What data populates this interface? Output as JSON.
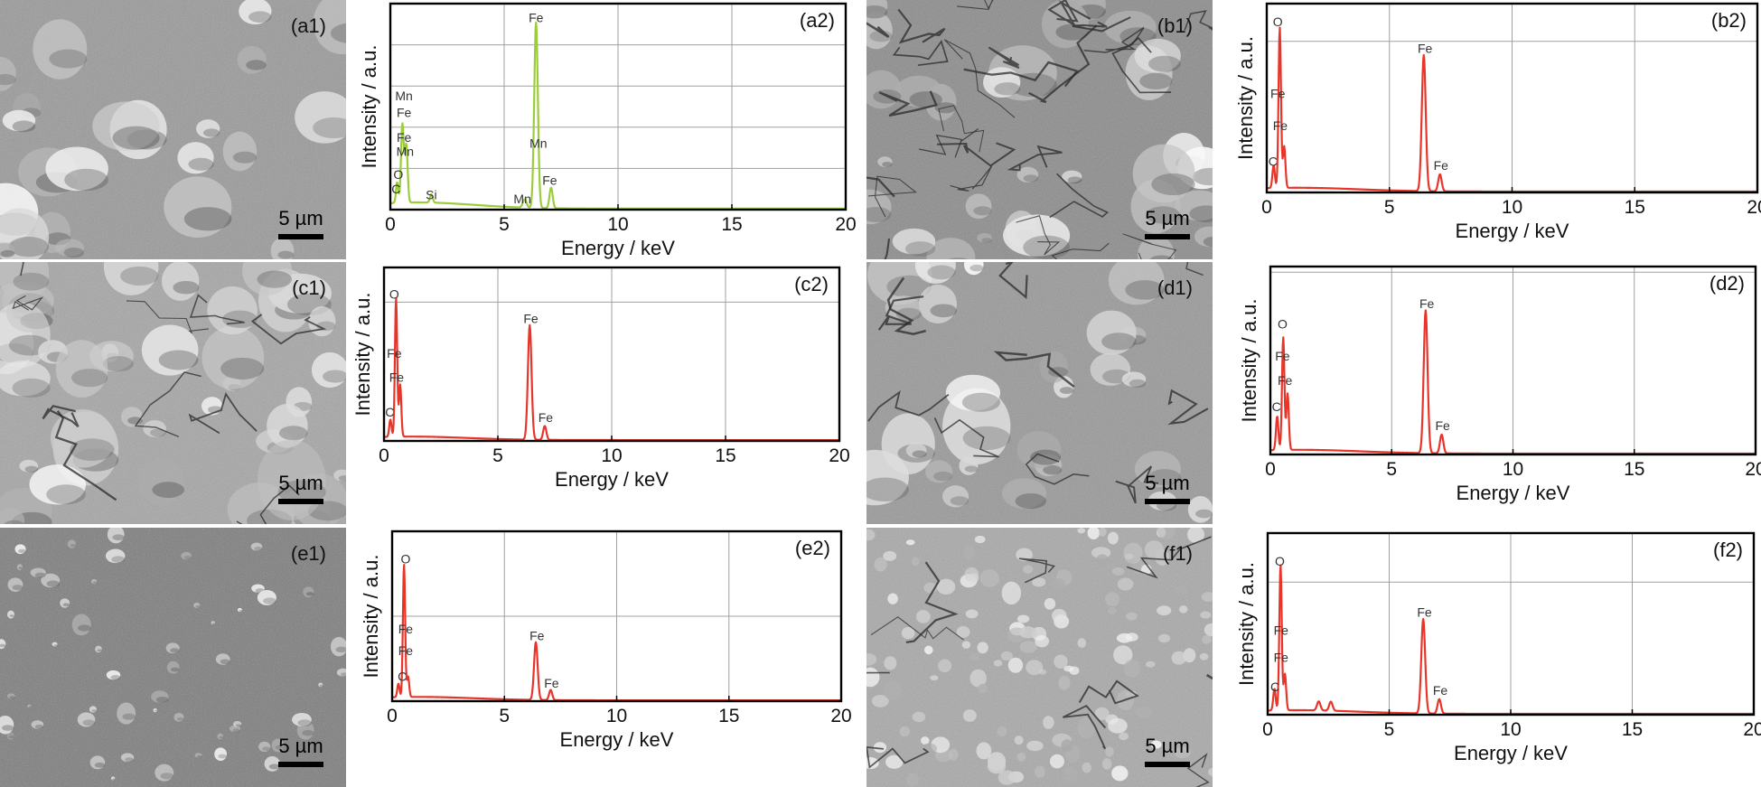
{
  "sem_panels": [
    {
      "id": "a1",
      "label": "(a1)",
      "scale_bar": "5 µm",
      "texture": "smooth"
    },
    {
      "id": "b1",
      "label": "(b1)",
      "scale_bar": "5 µm",
      "texture": "cracked"
    },
    {
      "id": "c1",
      "label": "(c1)",
      "scale_bar": "5 µm",
      "texture": "blocky"
    },
    {
      "id": "d1",
      "label": "(d1)",
      "scale_bar": "5 µm",
      "texture": "plates"
    },
    {
      "id": "e1",
      "label": "(e1)",
      "scale_bar": "5 µm",
      "texture": "speckled"
    },
    {
      "id": "f1",
      "label": "(f1)",
      "scale_bar": "5 µm",
      "texture": "granular"
    }
  ],
  "colors": {
    "spectrum_green": "#9ccc3c",
    "spectrum_red": "#e8352a",
    "grid": "#a0a0a0",
    "axis": "#000000"
  },
  "chart_data": [
    {
      "id": "a2",
      "type": "line",
      "panel_label": "(a2)",
      "xlabel": "Energy / keV",
      "ylabel": "Intensity / a.u.",
      "xlim": [
        0,
        20
      ],
      "xticks": [
        0,
        5,
        10,
        15,
        20
      ],
      "x_gridlines": [
        0,
        5,
        10,
        15,
        20
      ],
      "y_gridlines": [
        0.2,
        0.4,
        0.6,
        0.8,
        1.0
      ],
      "color": "#9ccc3c",
      "baseline": 0.03,
      "spectrum_end": 20,
      "peaks": [
        {
          "x": 0.3,
          "h": 0.1,
          "w": 0.05
        },
        {
          "x": 0.53,
          "h": 0.38,
          "w": 0.06
        },
        {
          "x": 0.7,
          "h": 0.28,
          "w": 0.06
        },
        {
          "x": 1.8,
          "h": 0.04,
          "w": 0.06
        },
        {
          "x": 5.9,
          "h": 0.04,
          "w": 0.08
        },
        {
          "x": 6.4,
          "h": 0.9,
          "w": 0.08
        },
        {
          "x": 7.06,
          "h": 0.1,
          "w": 0.07
        }
      ],
      "annotations": [
        {
          "text": "Mn",
          "x": 0.6,
          "y": 0.53
        },
        {
          "text": "Fe",
          "x": 0.6,
          "y": 0.45
        },
        {
          "text": "Fe",
          "x": 0.6,
          "y": 0.33
        },
        {
          "text": "Mn",
          "x": 0.65,
          "y": 0.26
        },
        {
          "text": "O",
          "x": 0.35,
          "y": 0.15
        },
        {
          "text": "C",
          "x": 0.25,
          "y": 0.08
        },
        {
          "text": "Si",
          "x": 1.8,
          "y": 0.05
        },
        {
          "text": "Mn",
          "x": 5.8,
          "y": 0.03
        },
        {
          "text": "Fe",
          "x": 6.4,
          "y": 0.91
        },
        {
          "text": "Mn",
          "x": 6.5,
          "y": 0.3
        },
        {
          "text": "Fe",
          "x": 7.0,
          "y": 0.12
        }
      ]
    },
    {
      "id": "b2",
      "type": "line",
      "panel_label": "(b2)",
      "xlabel": "Energy / keV",
      "ylabel": "Intensity / a.u.",
      "xlim": [
        0,
        20
      ],
      "xticks": [
        0,
        5,
        10,
        15,
        20
      ],
      "x_gridlines": [
        0,
        5,
        10,
        15,
        20
      ],
      "y_gridlines": [
        0.8,
        1.0
      ],
      "color": "#e8352a",
      "baseline": 0.02,
      "spectrum_end": 20,
      "peaks": [
        {
          "x": 0.28,
          "h": 0.12,
          "w": 0.05
        },
        {
          "x": 0.53,
          "h": 0.85,
          "w": 0.05
        },
        {
          "x": 0.71,
          "h": 0.22,
          "w": 0.05
        },
        {
          "x": 6.4,
          "h": 0.72,
          "w": 0.08
        },
        {
          "x": 7.06,
          "h": 0.09,
          "w": 0.07
        }
      ],
      "annotations": [
        {
          "text": "O",
          "x": 0.45,
          "y": 0.88
        },
        {
          "text": "Fe",
          "x": 0.45,
          "y": 0.5
        },
        {
          "text": "Fe",
          "x": 0.55,
          "y": 0.33
        },
        {
          "text": "C",
          "x": 0.25,
          "y": 0.14
        },
        {
          "text": "Fe",
          "x": 6.45,
          "y": 0.74
        },
        {
          "text": "Fe",
          "x": 7.1,
          "y": 0.12
        }
      ]
    },
    {
      "id": "c2",
      "type": "line",
      "panel_label": "(c2)",
      "xlabel": "Energy / keV",
      "ylabel": "Intensity / a.u.",
      "xlim": [
        0,
        20
      ],
      "xticks": [
        0,
        5,
        10,
        15,
        20
      ],
      "x_gridlines": [
        0,
        5,
        10,
        15,
        20
      ],
      "y_gridlines": [
        0.8,
        1.0
      ],
      "color": "#e8352a",
      "baseline": 0.02,
      "spectrum_end": 20,
      "peaks": [
        {
          "x": 0.28,
          "h": 0.1,
          "w": 0.05
        },
        {
          "x": 0.53,
          "h": 0.8,
          "w": 0.05
        },
        {
          "x": 0.71,
          "h": 0.3,
          "w": 0.05
        },
        {
          "x": 6.4,
          "h": 0.66,
          "w": 0.08
        },
        {
          "x": 7.06,
          "h": 0.08,
          "w": 0.07
        }
      ],
      "annotations": [
        {
          "text": "O",
          "x": 0.45,
          "y": 0.82
        },
        {
          "text": "Fe",
          "x": 0.45,
          "y": 0.48
        },
        {
          "text": "Fe",
          "x": 0.55,
          "y": 0.34
        },
        {
          "text": "C",
          "x": 0.25,
          "y": 0.14
        },
        {
          "text": "Fe",
          "x": 6.45,
          "y": 0.68
        },
        {
          "text": "Fe",
          "x": 7.1,
          "y": 0.11
        }
      ]
    },
    {
      "id": "d2",
      "type": "line",
      "panel_label": "(d2)",
      "xlabel": "Energy / keV",
      "ylabel": "Intensity / a.u.",
      "xlim": [
        0,
        20
      ],
      "xticks": [
        0,
        5,
        10,
        15,
        20
      ],
      "x_gridlines": [
        0,
        5,
        10,
        15,
        20
      ],
      "y_gridlines": [
        0.97
      ],
      "color": "#e8352a",
      "baseline": 0.02,
      "spectrum_end": 20,
      "peaks": [
        {
          "x": 0.28,
          "h": 0.18,
          "w": 0.05
        },
        {
          "x": 0.53,
          "h": 0.6,
          "w": 0.05
        },
        {
          "x": 0.71,
          "h": 0.3,
          "w": 0.05
        },
        {
          "x": 6.4,
          "h": 0.76,
          "w": 0.08
        },
        {
          "x": 7.06,
          "h": 0.1,
          "w": 0.07
        }
      ],
      "annotations": [
        {
          "text": "O",
          "x": 0.5,
          "y": 0.67
        },
        {
          "text": "Fe",
          "x": 0.5,
          "y": 0.5
        },
        {
          "text": "Fe",
          "x": 0.6,
          "y": 0.37
        },
        {
          "text": "C",
          "x": 0.25,
          "y": 0.23
        },
        {
          "text": "Fe",
          "x": 6.45,
          "y": 0.78
        },
        {
          "text": "Fe",
          "x": 7.1,
          "y": 0.13
        }
      ]
    },
    {
      "id": "e2",
      "type": "line",
      "panel_label": "(e2)",
      "xlabel": "Energy / keV",
      "ylabel": "Intensity / a.u.",
      "xlim": [
        0,
        20
      ],
      "xticks": [
        0,
        5,
        10,
        15,
        20
      ],
      "x_gridlines": [
        0,
        5,
        10,
        15,
        20
      ],
      "y_gridlines": [
        0.5
      ],
      "color": "#e8352a",
      "baseline": 0.02,
      "spectrum_end": 20,
      "peaks": [
        {
          "x": 0.28,
          "h": 0.08,
          "w": 0.05
        },
        {
          "x": 0.53,
          "h": 0.78,
          "w": 0.05
        },
        {
          "x": 0.71,
          "h": 0.12,
          "w": 0.05
        },
        {
          "x": 6.4,
          "h": 0.34,
          "w": 0.08
        },
        {
          "x": 7.06,
          "h": 0.06,
          "w": 0.07
        }
      ],
      "annotations": [
        {
          "text": "O",
          "x": 0.6,
          "y": 0.81
        },
        {
          "text": "Fe",
          "x": 0.6,
          "y": 0.4
        },
        {
          "text": "Fe",
          "x": 0.6,
          "y": 0.27
        },
        {
          "text": "C",
          "x": 0.45,
          "y": 0.12
        },
        {
          "text": "Fe",
          "x": 6.45,
          "y": 0.36
        },
        {
          "text": "Fe",
          "x": 7.1,
          "y": 0.08
        }
      ]
    },
    {
      "id": "f2",
      "type": "line",
      "panel_label": "(f2)",
      "xlabel": "Energy / keV",
      "ylabel": "Intensity / a.u.",
      "xlim": [
        0,
        20
      ],
      "xticks": [
        0,
        5,
        10,
        15,
        20
      ],
      "x_gridlines": [
        0,
        5,
        10,
        15,
        20
      ],
      "y_gridlines": [
        0.73
      ],
      "color": "#e8352a",
      "baseline": 0.02,
      "spectrum_end": 20,
      "peaks": [
        {
          "x": 0.28,
          "h": 0.12,
          "w": 0.05
        },
        {
          "x": 0.53,
          "h": 0.8,
          "w": 0.05
        },
        {
          "x": 0.71,
          "h": 0.2,
          "w": 0.05
        },
        {
          "x": 2.1,
          "h": 0.05,
          "w": 0.07
        },
        {
          "x": 2.6,
          "h": 0.05,
          "w": 0.07
        },
        {
          "x": 6.4,
          "h": 0.52,
          "w": 0.08
        },
        {
          "x": 7.06,
          "h": 0.08,
          "w": 0.07
        }
      ],
      "annotations": [
        {
          "text": "O",
          "x": 0.5,
          "y": 0.82
        },
        {
          "text": "Fe",
          "x": 0.55,
          "y": 0.44
        },
        {
          "text": "Fe",
          "x": 0.55,
          "y": 0.29
        },
        {
          "text": "C",
          "x": 0.3,
          "y": 0.13
        },
        {
          "text": "Fe",
          "x": 6.45,
          "y": 0.54
        },
        {
          "text": "Fe",
          "x": 7.1,
          "y": 0.11
        }
      ]
    }
  ]
}
